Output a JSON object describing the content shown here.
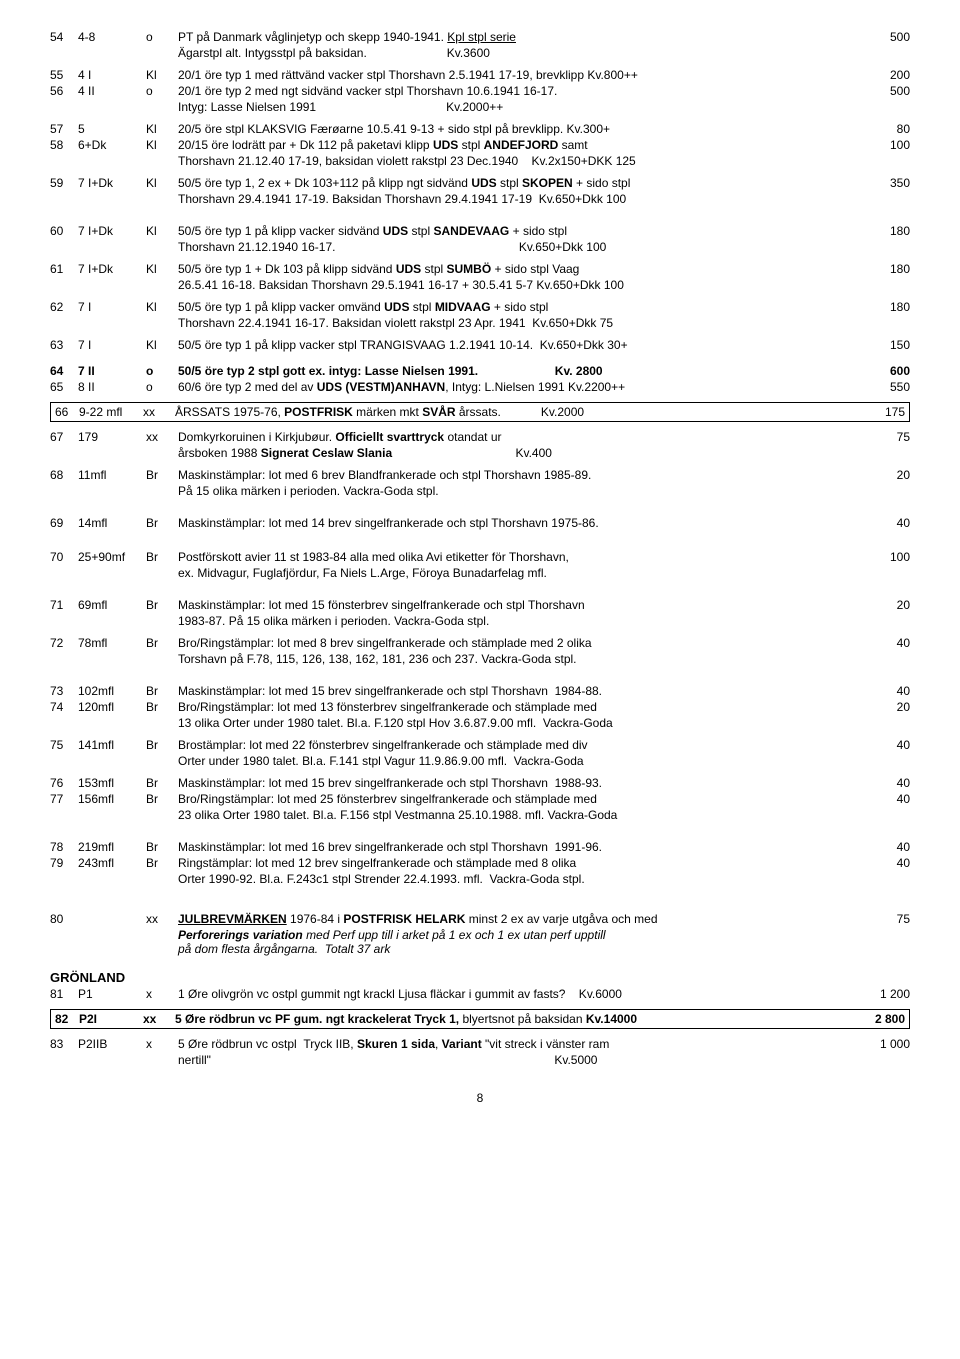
{
  "rows": [
    {
      "num": "54",
      "ref": "4-8",
      "type": "o",
      "desc": "PT på Danmark våglinjetyp och skepp 1940-1941. <u>Kpl stpl serie</u>",
      "price": "500",
      "line2": "Ägarstpl alt. Intygsstpl på baksidan.&nbsp;&nbsp;&nbsp;&nbsp;&nbsp;&nbsp;&nbsp;&nbsp;&nbsp;&nbsp;&nbsp;&nbsp;&nbsp;&nbsp;&nbsp;&nbsp;&nbsp;&nbsp;&nbsp;&nbsp;&nbsp;&nbsp;&nbsp;&nbsp;Kv.3600"
    },
    {
      "num": "55",
      "ref": "4 I",
      "type": "Kl",
      "desc": "20/1 öre typ 1 med rättvänd vacker stpl Thorshavn 2.5.1941 17-19, brevklipp Kv.800++",
      "price": "200"
    },
    {
      "num": "56",
      "ref": "4 II",
      "type": "o",
      "desc": "20/1 öre typ 2 med ngt sidvänd vacker stpl Thorshavn 10.6.1941 16-17.",
      "price": "500",
      "line2": "Intyg: Lasse Nielsen 1991&nbsp;&nbsp;&nbsp;&nbsp;&nbsp;&nbsp;&nbsp;&nbsp;&nbsp;&nbsp;&nbsp;&nbsp;&nbsp;&nbsp;&nbsp;&nbsp;&nbsp;&nbsp;&nbsp;&nbsp;&nbsp;&nbsp;&nbsp;&nbsp;&nbsp;&nbsp;&nbsp;&nbsp;&nbsp;&nbsp;&nbsp;&nbsp;&nbsp;&nbsp;&nbsp;&nbsp;&nbsp;&nbsp;&nbsp;Kv.2000++"
    },
    {
      "num": "57",
      "ref": "5",
      "type": "Kl",
      "desc": "20/5 öre stpl KLAKSVIG Færøarne 10.5.41 9-13 + sido stpl på brevklipp. Kv.300+",
      "price": "80"
    },
    {
      "num": "58",
      "ref": "6+Dk",
      "type": "Kl",
      "desc": "20/15 öre lodrätt par + Dk 112 på paketavi klipp <b>UDS</b> stpl <b>ANDEFJORD</b> samt",
      "price": "100",
      "line2": "Thorshavn 21.12.40 17-19, baksidan violett rakstpl 23 Dec.1940&nbsp;&nbsp;&nbsp;&nbsp;Kv.2x150+DKK 125"
    },
    {
      "num": "59",
      "ref": "7 I+Dk",
      "type": "Kl",
      "desc": "50/5 öre typ 1, 2 ex + Dk 103+112 på klipp ngt sidvänd <b>UDS</b> stpl <b>SKOPEN</b> + sido stpl",
      "price": "350",
      "line2": "Thorshavn 29.4.1941 17-19. Baksidan Thorshavn 29.4.1941 17-19&nbsp;&nbsp;Kv.650+Dkk 100"
    },
    {
      "gap": true
    },
    {
      "num": "60",
      "ref": "7 I+Dk",
      "type": "Kl",
      "desc": "50/5 öre typ 1 på klipp vacker sidvänd <b>UDS</b> stpl <b>SANDEVAAG</b> + sido stpl",
      "price": "180",
      "line2": "Thorshavn 21.12.1940 16-17.&nbsp;&nbsp;&nbsp;&nbsp;&nbsp;&nbsp;&nbsp;&nbsp;&nbsp;&nbsp;&nbsp;&nbsp;&nbsp;&nbsp;&nbsp;&nbsp;&nbsp;&nbsp;&nbsp;&nbsp;&nbsp;&nbsp;&nbsp;&nbsp;&nbsp;&nbsp;&nbsp;&nbsp;&nbsp;&nbsp;&nbsp;&nbsp;&nbsp;&nbsp;&nbsp;&nbsp;&nbsp;&nbsp;&nbsp;&nbsp;&nbsp;&nbsp;&nbsp;&nbsp;&nbsp;&nbsp;&nbsp;&nbsp;&nbsp;&nbsp;&nbsp;&nbsp;&nbsp;&nbsp;&nbsp;Kv.650+Dkk 100"
    },
    {
      "num": "61",
      "ref": "7 I+Dk",
      "type": "Kl",
      "desc": "50/5 öre typ 1 + Dk 103 på klipp sidvänd <b>UDS</b> stpl <b>SUMBÖ</b> + sido stpl Vaag",
      "price": "180",
      "line2": "26.5.41 16-18. Baksidan Thorshavn 29.5.1941 16-17 + 30.5.41 5-7&nbsp;Kv.650+Dkk 100"
    },
    {
      "num": "62",
      "ref": "7 I",
      "type": "Kl",
      "desc": "50/5 öre typ 1 på klipp vacker omvänd <b>UDS</b> stpl <b>MIDVAAG</b> + sido stpl",
      "price": "180",
      "line2": "Thorshavn 22.4.1941 16-17. Baksidan violett rakstpl 23 Apr. 1941&nbsp;&nbsp;Kv.650+Dkk 75"
    },
    {
      "num": "63",
      "ref": "7 I",
      "type": "Kl",
      "desc": "50/5 öre typ 1 på klipp vacker stpl TRANGISVAAG 1.2.1941 10-14.&nbsp;&nbsp;Kv.650+Dkk 30+",
      "price": "150"
    },
    {
      "gap": true
    },
    {
      "num": "64",
      "ref": "7 II",
      "type": "o",
      "desc": "<b>50/5 öre typ 2 stpl gott ex. intyg: Lasse Nielsen 1991.&nbsp;&nbsp;&nbsp;&nbsp;&nbsp;&nbsp;&nbsp;&nbsp;&nbsp;&nbsp;&nbsp;&nbsp;&nbsp;&nbsp;&nbsp;&nbsp;&nbsp;&nbsp;&nbsp;&nbsp;&nbsp;&nbsp;&nbsp;Kv. 2800</b>",
      "price": "600",
      "bold": true
    },
    {
      "num": "65",
      "ref": "8 II",
      "type": "o",
      "desc": "60/6 öre typ 2 med del av <b>UDS (VESTM)ANHAVN</b>, Intyg: L.Nielsen 1991&nbsp;Kv.2200++",
      "price": "550"
    },
    {
      "box": true,
      "num": "66",
      "ref": "9-22 mfl",
      "type": "xx",
      "desc": "ÅRSSATS 1975-76, <b>POSTFRISK</b> märken mkt <b>SVÅR</b> årssats.&nbsp;&nbsp;&nbsp;&nbsp;&nbsp;&nbsp;&nbsp;&nbsp;&nbsp;&nbsp;&nbsp;&nbsp;Kv.2000",
      "price": "175"
    },
    {
      "num": "67",
      "ref": "179",
      "type": "xx",
      "desc": "Domkyrkoruinen i Kirkjubøur. <b>Officiellt svarttryck</b> otandat ur",
      "price": "75",
      "line2": "årsboken 1988 <b>Signerat Ceslaw Slania</b>&nbsp;&nbsp;&nbsp;&nbsp;&nbsp;&nbsp;&nbsp;&nbsp;&nbsp;&nbsp;&nbsp;&nbsp;&nbsp;&nbsp;&nbsp;&nbsp;&nbsp;&nbsp;&nbsp;&nbsp;&nbsp;&nbsp;&nbsp;&nbsp;&nbsp;&nbsp;&nbsp;&nbsp;&nbsp;&nbsp;&nbsp;&nbsp;&nbsp;&nbsp;&nbsp;&nbsp;&nbsp;Kv.400"
    },
    {
      "num": "68",
      "ref": "11mfl",
      "type": "Br",
      "desc": "Maskinstämplar: lot med 6 brev Blandfrankerade och stpl Thorshavn 1985-89.",
      "price": "20",
      "line2": "På 15 olika märken i perioden. Vackra-Goda stpl."
    },
    {
      "gap": true
    },
    {
      "num": "69",
      "ref": "14mfl",
      "type": "Br",
      "desc": "Maskinstämplar: lot med 14 brev singelfrankerade och stpl Thorshavn 1975-86.",
      "price": "40"
    },
    {
      "gapLg": true
    },
    {
      "num": "70",
      "ref": "25+90mf",
      "type": "Br",
      "desc": "Postförskott avier 11 st 1983-84 alla med olika Avi etiketter för Thorshavn,",
      "price": "100",
      "line2": "ex. Midvagur, Fuglafjördur, Fa Niels L.Arge, Föroya Bunadarfelag mfl."
    },
    {
      "gap": true
    },
    {
      "num": "71",
      "ref": "69mfl",
      "type": "Br",
      "desc": "Maskinstämplar: lot med 15 fönsterbrev singelfrankerade och stpl Thorshavn",
      "price": "20",
      "line2": "1983-87. På 15 olika märken i perioden. Vackra-Goda stpl."
    },
    {
      "num": "72",
      "ref": "78mfl",
      "type": "Br",
      "desc": "Bro/Ringstämplar: lot med 8 brev singelfrankerade och stämplade med 2 olika",
      "price": "40",
      "line2": "Torshavn på F.78, 115, 126, 138, 162, 181, 236 och 237. Vackra-Goda stpl."
    },
    {
      "gap": true
    },
    {
      "num": "73",
      "ref": "102mfl",
      "type": "Br",
      "desc": "Maskinstämplar: lot med 15 brev singelfrankerade och stpl Thorshavn&nbsp;&nbsp;1984-88.",
      "price": "40"
    },
    {
      "num": "74",
      "ref": "120mfl",
      "type": "Br",
      "desc": "Bro/Ringstämplar: lot med 13 fönsterbrev singelfrankerade och stämplade med",
      "price": "20",
      "line2": "13 olika Orter under 1980 talet. Bl.a. F.120 stpl Hov 3.6.87.9.00 mfl.&nbsp;&nbsp;Vackra-Goda"
    },
    {
      "num": "75",
      "ref": "141mfl",
      "type": "Br",
      "desc": "Brostämplar: lot med 22 fönsterbrev singelfrankerade och stämplade med div",
      "price": "40",
      "line2": "Orter under 1980 talet. Bl.a. F.141 stpl Vagur 11.9.86.9.00 mfl.&nbsp;&nbsp;Vackra-Goda"
    },
    {
      "num": "76",
      "ref": "153mfl",
      "type": "Br",
      "desc": "Maskinstämplar: lot med 15 brev singelfrankerade och stpl Thorshavn&nbsp;&nbsp;1988-93.",
      "price": "40"
    },
    {
      "num": "77",
      "ref": "156mfl",
      "type": "Br",
      "desc": "Bro/Ringstämplar: lot med 25 fönsterbrev singelfrankerade och stämplade med",
      "price": "40",
      "line2": "23 olika Orter 1980 talet. Bl.a. F.156 stpl Vestmanna 25.10.1988. mfl. Vackra-Goda"
    },
    {
      "gap": true
    },
    {
      "num": "78",
      "ref": "219mfl",
      "type": "Br",
      "desc": "Maskinstämplar: lot med 16 brev singelfrankerade och stpl Thorshavn&nbsp;&nbsp;1991-96.",
      "price": "40"
    },
    {
      "num": "79",
      "ref": "243mfl",
      "type": "Br",
      "desc": "Ringstämplar: lot med 12 brev singelfrankerade och stämplade med 8 olika",
      "price": "40",
      "line2": "Orter 1990-92. Bl.a. F.243c1 stpl Strender 22.4.1993. mfl.&nbsp;&nbsp;Vackra-Goda stpl."
    },
    {
      "gapLg": true
    },
    {
      "num": "80",
      "ref": "",
      "type": "xx",
      "desc": "<b><u>JULBREVMÄRKEN</u></b> 1976-84 i <b>POSTFRISK HELARK</b> minst 2 ex av varje utgåva och med",
      "price": "75",
      "line2": "<b><i>Perforerings variation</i></b> <i>med Perf upp till i arket på 1 ex och 1 ex utan perf upptill<br>på dom flesta årgångarna.&nbsp;&nbsp;Totalt 37 ark</i>"
    },
    {
      "section": "GRÖNLAND"
    },
    {
      "num": "81",
      "ref": "P1",
      "type": "x",
      "desc": "1 Øre olivgrön vc ostpl gummit ngt krackl Ljusa fläckar i gummit av fasts?&nbsp;&nbsp;&nbsp;&nbsp;Kv.6000",
      "price": "1 200"
    },
    {
      "box": true,
      "num": "82",
      "ref": "P2I",
      "type": "xx",
      "desc": "<b>5 Øre rödbrun vc PF gum. ngt krackelerat Tryck 1,</b> blyertsnot på baksidan <b>Kv.14000</b>",
      "price": "2 800",
      "bold": true
    },
    {
      "num": "83",
      "ref": "P2IIB",
      "type": "x",
      "desc": "5 Øre rödbrun vc ostpl&nbsp;&nbsp;Tryck IIB, <b>Skuren 1 sida</b>, <b>Variant</b> \"vit streck i vänster ram",
      "price": "1 000",
      "line2": "nertill\"&nbsp;&nbsp;&nbsp;&nbsp;&nbsp;&nbsp;&nbsp;&nbsp;&nbsp;&nbsp;&nbsp;&nbsp;&nbsp;&nbsp;&nbsp;&nbsp;&nbsp;&nbsp;&nbsp;&nbsp;&nbsp;&nbsp;&nbsp;&nbsp;&nbsp;&nbsp;&nbsp;&nbsp;&nbsp;&nbsp;&nbsp;&nbsp;&nbsp;&nbsp;&nbsp;&nbsp;&nbsp;&nbsp;&nbsp;&nbsp;&nbsp;&nbsp;&nbsp;&nbsp;&nbsp;&nbsp;&nbsp;&nbsp;&nbsp;&nbsp;&nbsp;&nbsp;&nbsp;&nbsp;&nbsp;&nbsp;&nbsp;&nbsp;&nbsp;&nbsp;&nbsp;&nbsp;&nbsp;&nbsp;&nbsp;&nbsp;&nbsp;&nbsp;&nbsp;&nbsp;&nbsp;&nbsp;&nbsp;&nbsp;&nbsp;&nbsp;&nbsp;&nbsp;&nbsp;&nbsp;&nbsp;&nbsp;&nbsp;&nbsp;&nbsp;&nbsp;&nbsp;&nbsp;&nbsp;&nbsp;&nbsp;&nbsp;&nbsp;&nbsp;&nbsp;&nbsp;&nbsp;&nbsp;&nbsp;&nbsp;&nbsp;&nbsp;&nbsp;Kv.5000"
    }
  ],
  "pageNum": "8"
}
